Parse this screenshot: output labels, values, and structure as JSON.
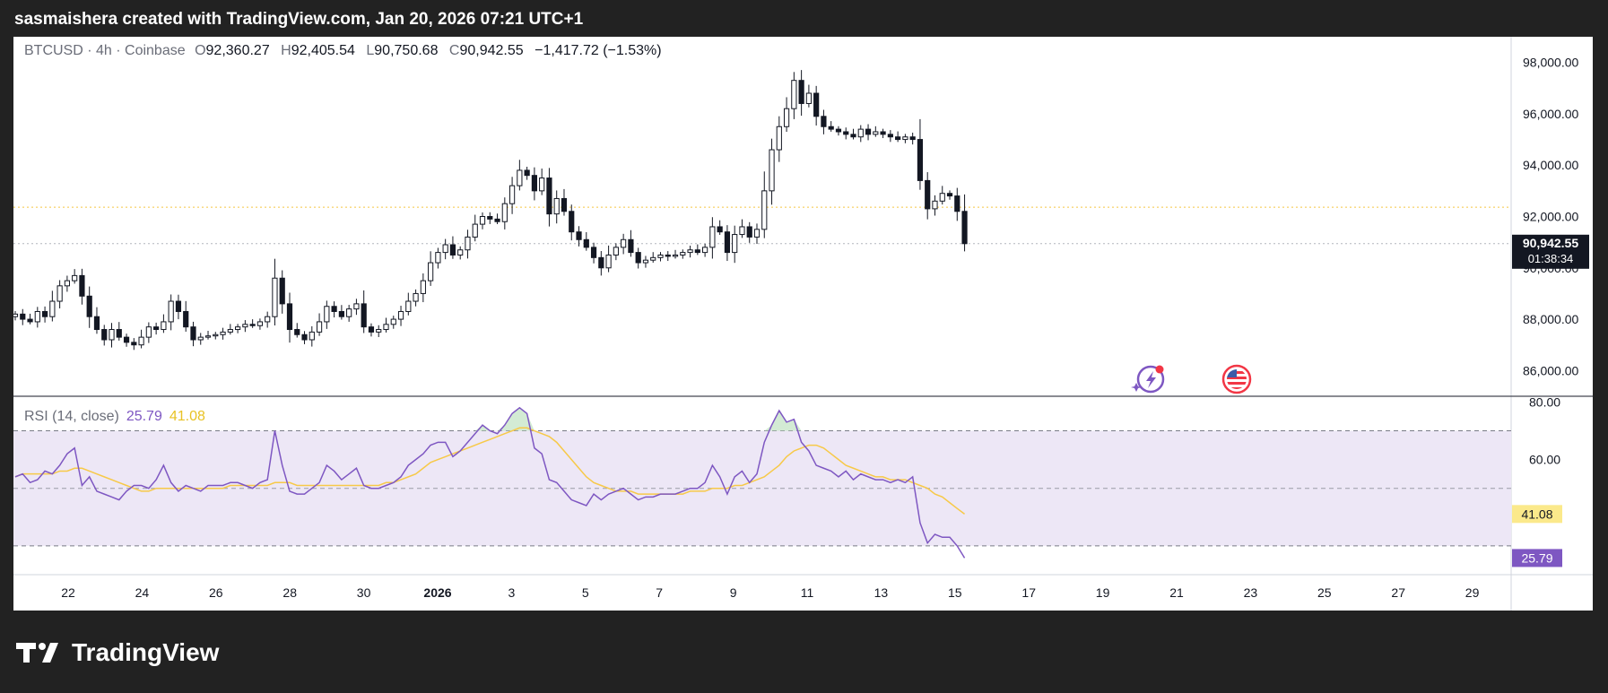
{
  "header": {
    "title": "sasmaishera created with TradingView.com, Jan 20, 2026 07:21 UTC+1"
  },
  "legend": {
    "symbol": "BTCUSD · 4h · Coinbase",
    "open_label": "O",
    "open": "92,360.27",
    "high_label": "H",
    "high": "92,405.54",
    "low_label": "L",
    "low": "90,750.68",
    "close_label": "C",
    "close": "90,942.55",
    "change": "−1,417.72 (−1.53%)"
  },
  "rsi_legend": {
    "label": "RSI (14, close)",
    "rsi": "25.79",
    "ma": "41.08"
  },
  "price_badge": {
    "price": "90,942.55",
    "countdown": "01:38:34"
  },
  "footer": {
    "brand": "TradingView"
  },
  "icons": {
    "event_icon": "lightning-event-icon",
    "flag_icon": "us-flag-icon"
  },
  "colors": {
    "up_body": "#ffffff",
    "down_body": "#131722",
    "wick": "#131722",
    "rsi_line": "#7e57c2",
    "rsi_ma": "#f7c948",
    "rsi_band": "#ede7f6"
  },
  "chart_data": [
    {
      "type": "candlestick",
      "title": "BTCUSD · 4h · Coinbase",
      "ylim": [
        85000,
        99000
      ],
      "y_ticks": [
        "86,000.00",
        "88,000.00",
        "90,000.00",
        "92,000.00",
        "94,000.00",
        "96,000.00",
        "98,000.00"
      ],
      "x_ticks": [
        "22",
        "24",
        "26",
        "28",
        "30",
        "2026",
        "3",
        "5",
        "7",
        "9",
        "11",
        "13",
        "15",
        "17",
        "19",
        "21",
        "23",
        "25",
        "27",
        "29"
      ],
      "current_price": 90942.55,
      "reference_price": 92360.27,
      "closes": [
        88200,
        88000,
        87900,
        88300,
        88100,
        88700,
        89300,
        89500,
        89700,
        88900,
        88100,
        87600,
        87200,
        87600,
        87300,
        87100,
        87000,
        87300,
        87700,
        87600,
        87900,
        88700,
        88300,
        87700,
        87200,
        87300,
        87350,
        87400,
        87500,
        87600,
        87700,
        87800,
        87750,
        87900,
        88100,
        89600,
        88600,
        87600,
        87400,
        87200,
        87500,
        87900,
        88500,
        88300,
        88100,
        88400,
        88600,
        87700,
        87500,
        87600,
        87800,
        88000,
        88300,
        88700,
        89000,
        89500,
        90200,
        90600,
        90900,
        90500,
        90700,
        91200,
        91700,
        92000,
        91900,
        91800,
        92500,
        93200,
        93800,
        93600,
        93000,
        93500,
        92100,
        92700,
        92200,
        91400,
        91100,
        90800,
        90400,
        90000,
        90500,
        90800,
        91100,
        90600,
        90200,
        90300,
        90400,
        90500,
        90450,
        90500,
        90600,
        90700,
        90600,
        90800,
        91600,
        91400,
        90600,
        91300,
        91600,
        91200,
        91500,
        93000,
        94600,
        95500,
        96200,
        97300,
        96400,
        96800,
        95900,
        95500,
        95400,
        95300,
        95200,
        95100,
        95400,
        95200,
        95300,
        95200,
        95100,
        95000,
        95100,
        95000,
        93400,
        92300,
        92600,
        92900,
        92800,
        92200,
        90942.55
      ]
    },
    {
      "type": "line",
      "title": "RSI (14, close)",
      "ylim": [
        20,
        82
      ],
      "y_ticks": [
        "60.00",
        "80.00"
      ],
      "overbought": 70,
      "middle": 50,
      "oversold": 30,
      "rsi_last": 25.79,
      "ma_last": 41.08,
      "series": [
        {
          "name": "RSI",
          "values": [
            54,
            55,
            52,
            53,
            56,
            55,
            58,
            62,
            64,
            51,
            54,
            49,
            48,
            47,
            46,
            49,
            51,
            51,
            50,
            53,
            58,
            52,
            49,
            51,
            50,
            49,
            51,
            51,
            51,
            52,
            52,
            51,
            50,
            52,
            53,
            70,
            58,
            49,
            48,
            48,
            50,
            52,
            58,
            56,
            53,
            55,
            57,
            51,
            50,
            50,
            51,
            52,
            54,
            58,
            60,
            62,
            65,
            66,
            66,
            61,
            63,
            66,
            69,
            72,
            70,
            69,
            72,
            76,
            78,
            76,
            64,
            62,
            53,
            52,
            49,
            46,
            45,
            44,
            48,
            46,
            48,
            49,
            50,
            48,
            46,
            47,
            47,
            48,
            48,
            48,
            49,
            50,
            50,
            52,
            58,
            54,
            48,
            54,
            56,
            52,
            55,
            66,
            72,
            77,
            73,
            74,
            66,
            63,
            58,
            57,
            56,
            54,
            56,
            53,
            55,
            54,
            53,
            53,
            52,
            53,
            52,
            54,
            38,
            31,
            34,
            33,
            33,
            30,
            25.79
          ]
        },
        {
          "name": "RSI-based MA",
          "values": [
            54,
            55,
            55,
            55,
            55,
            55,
            56,
            56,
            57,
            57,
            56,
            55,
            54,
            53,
            52,
            51,
            50,
            49,
            49,
            50,
            50,
            50,
            50,
            50,
            50,
            50,
            50,
            50,
            50,
            51,
            51,
            51,
            51,
            51,
            51,
            52,
            52,
            52,
            51,
            51,
            51,
            51,
            51,
            51,
            51,
            51,
            51,
            51,
            51,
            51,
            52,
            52,
            53,
            54,
            55,
            57,
            59,
            60,
            61,
            62,
            63,
            64,
            65,
            66,
            67,
            68,
            69,
            70,
            71,
            71,
            70,
            69,
            68,
            66,
            63,
            60,
            57,
            54,
            52,
            51,
            50,
            49,
            49,
            49,
            48,
            48,
            48,
            48,
            48,
            48,
            48,
            49,
            49,
            49,
            50,
            50,
            50,
            51,
            51,
            52,
            53,
            54,
            56,
            58,
            61,
            63,
            64,
            65,
            65,
            64,
            62,
            60,
            58,
            57,
            56,
            55,
            54,
            54,
            53,
            53,
            53,
            52,
            51,
            50,
            48,
            47,
            45,
            43,
            41.08
          ]
        }
      ]
    }
  ]
}
